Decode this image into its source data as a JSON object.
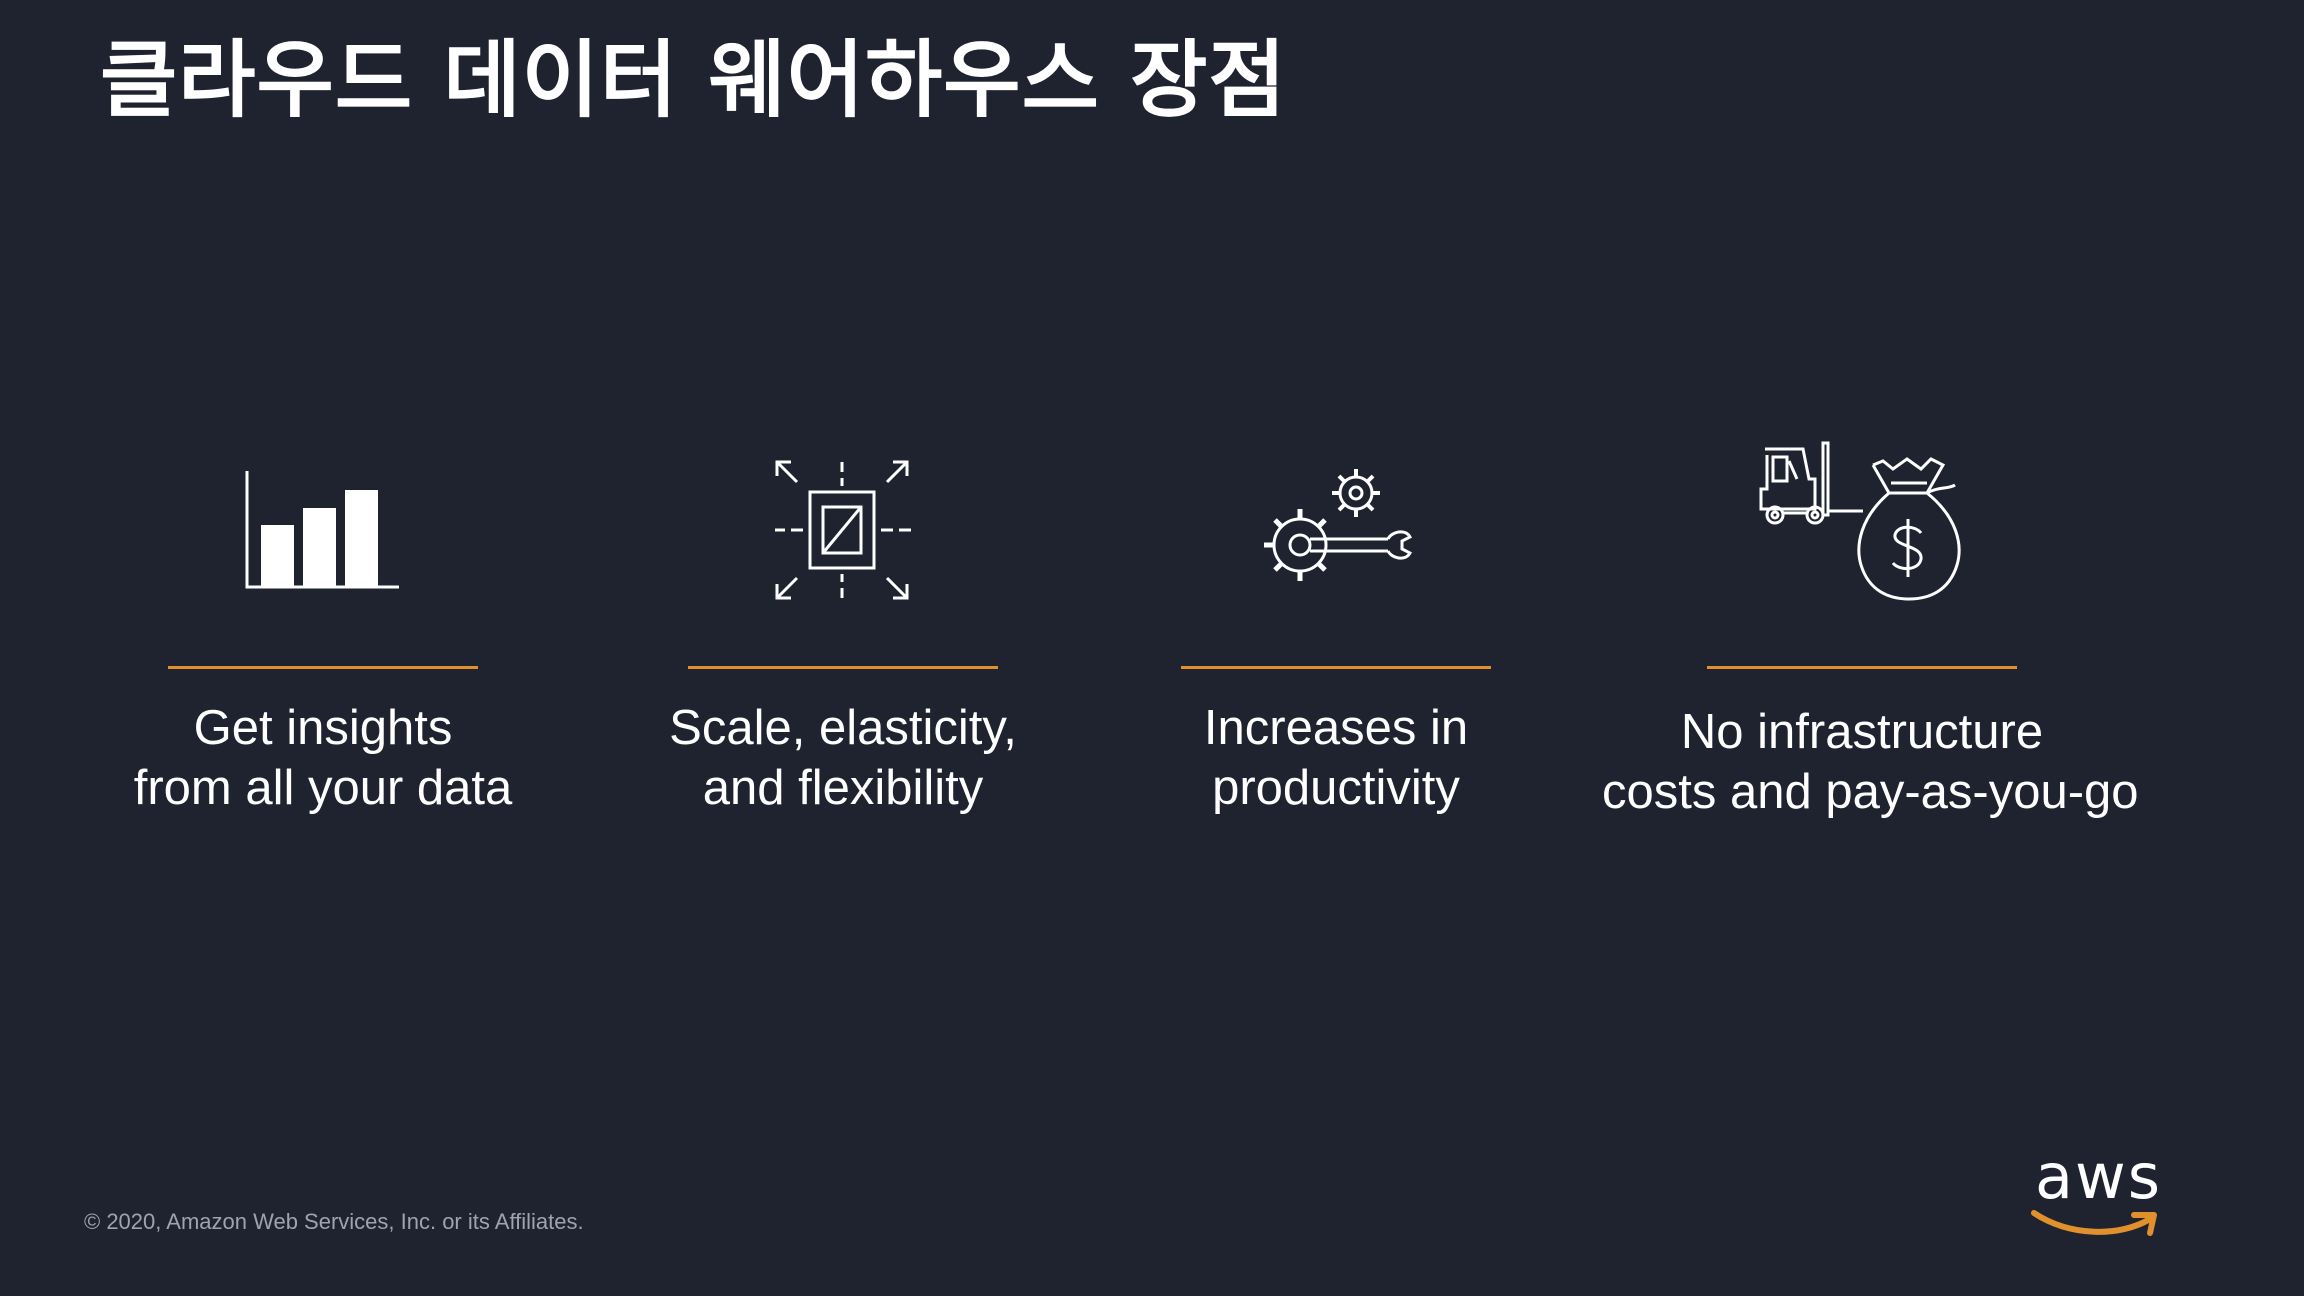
{
  "slide": {
    "title": "클라우드 데이터 웨어하우스 장점",
    "features": [
      {
        "icon": "bar-chart-icon",
        "line1": "Get insights",
        "line2": "from all your data"
      },
      {
        "icon": "scale-expand-icon",
        "line1": "Scale, elasticity,",
        "line2": "and flexibility"
      },
      {
        "icon": "gears-wrench-icon",
        "line1": "Increases in",
        "line2": "productivity"
      },
      {
        "icon": "forklift-money-bag-icon",
        "line1": "No infrastructure",
        "line2": "costs and pay-as-you-go"
      }
    ],
    "copyright": "© 2020, Amazon Web Services, Inc. or its Affiliates.",
    "logo_text": "aws"
  },
  "colors": {
    "background": "#1f2330",
    "accent": "#e0912e",
    "text": "#ffffff",
    "muted": "#9ea3ad"
  }
}
